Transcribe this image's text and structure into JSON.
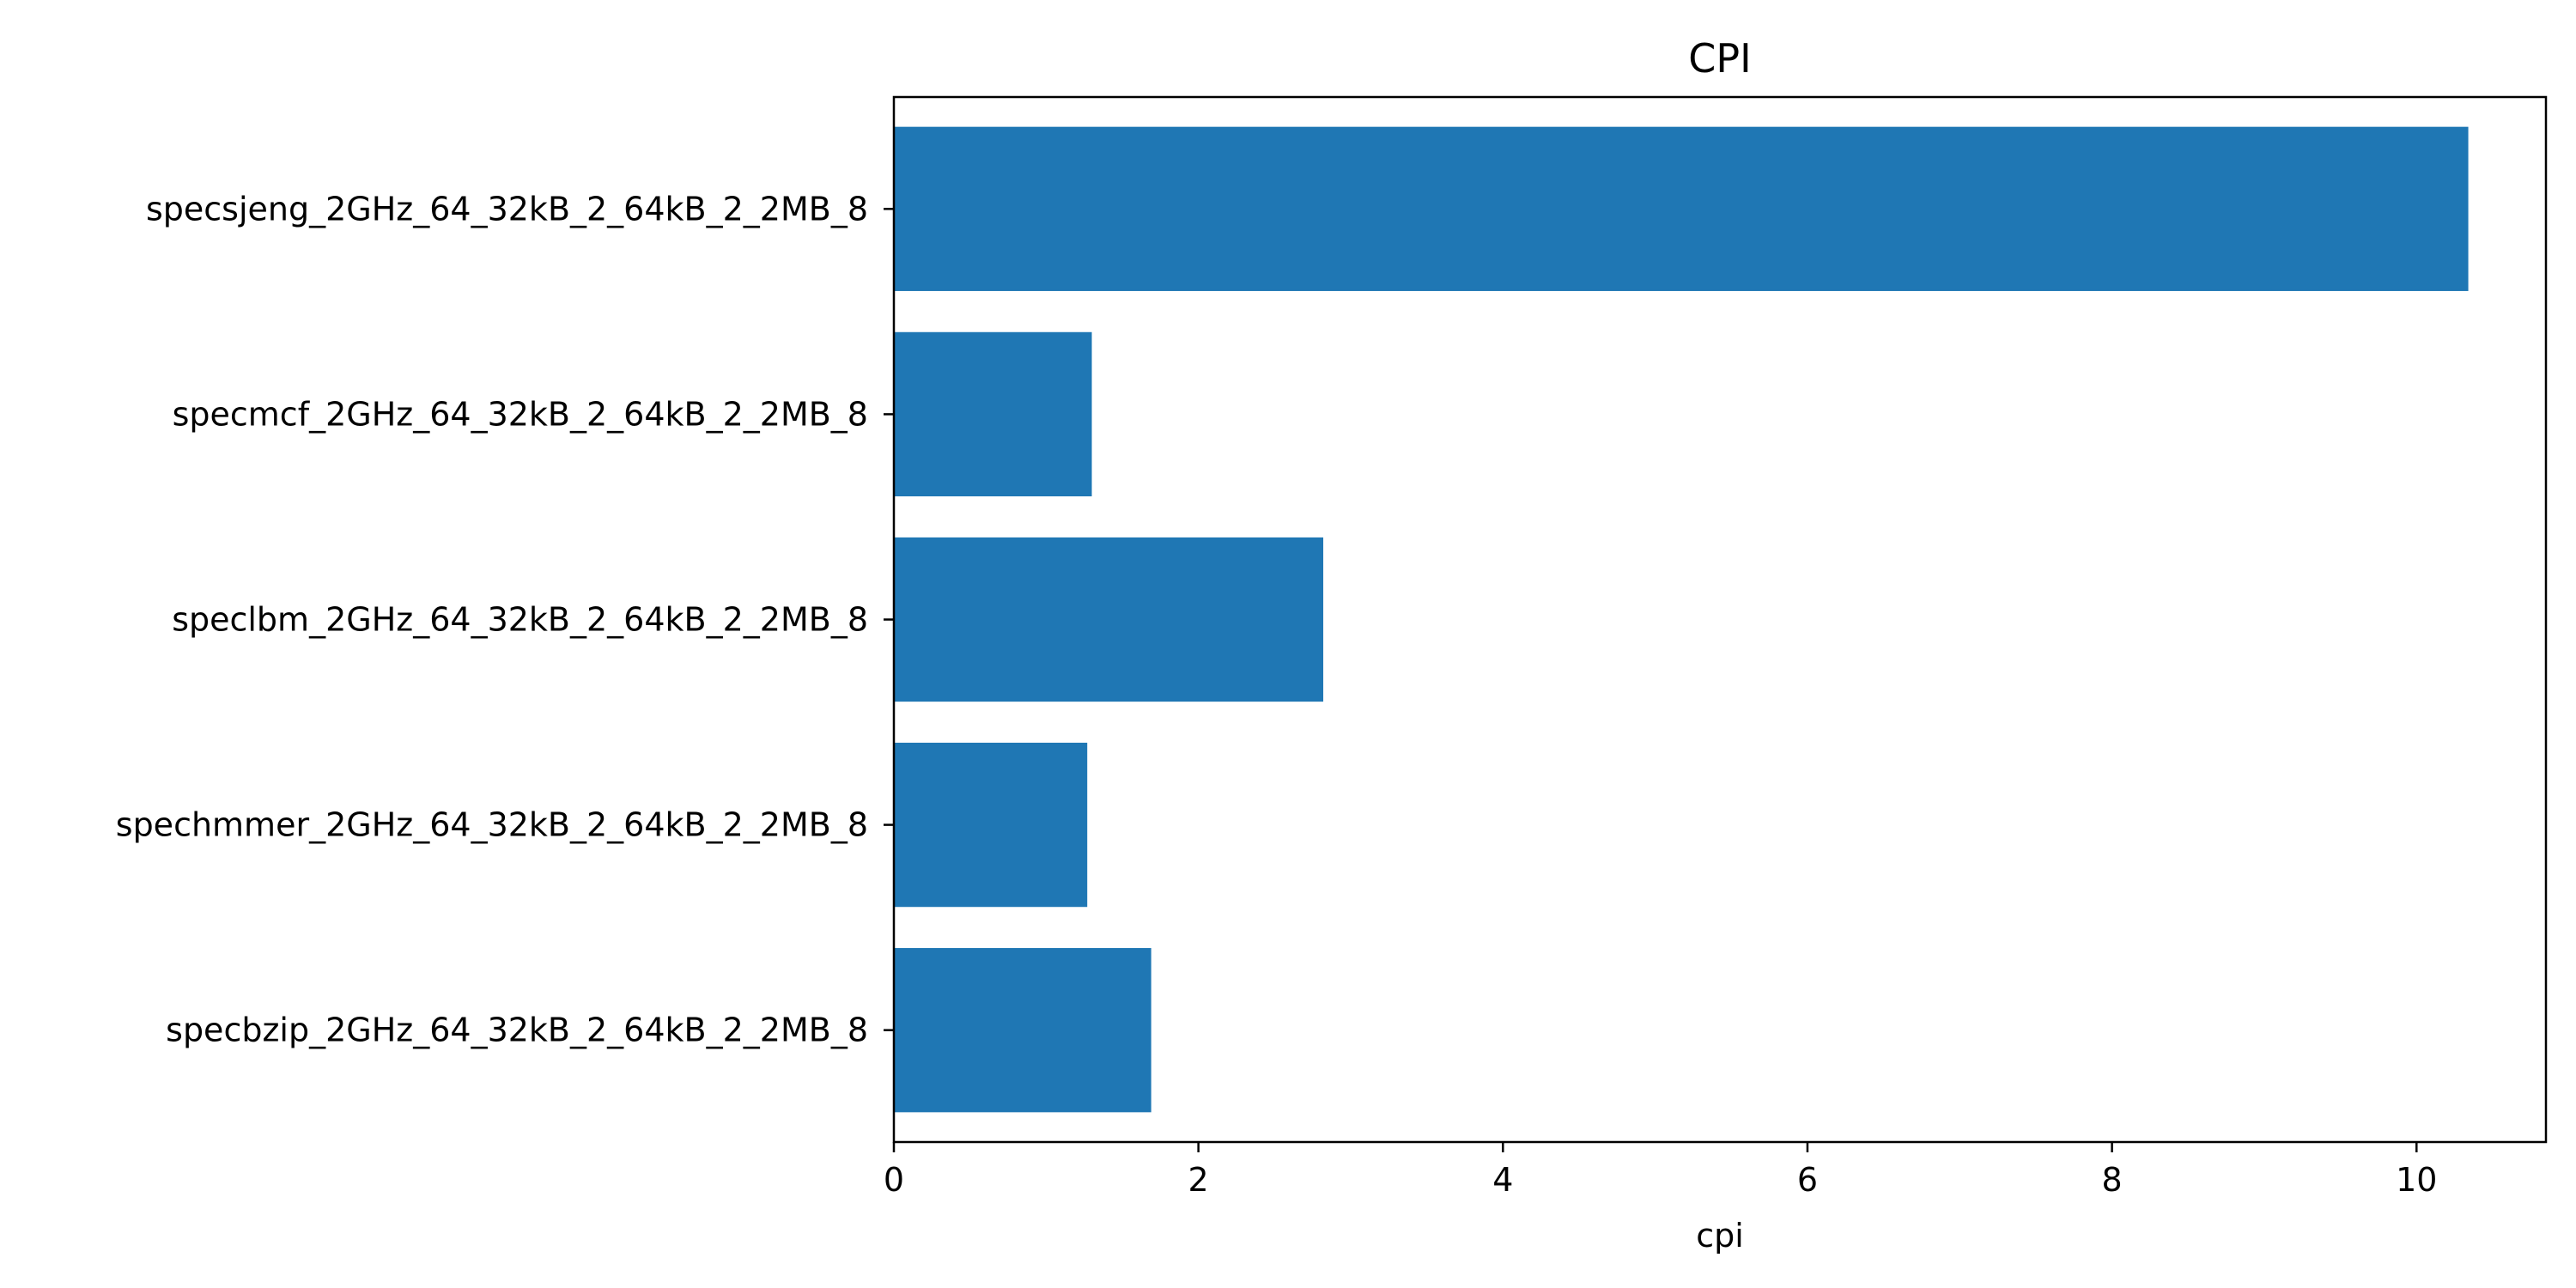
{
  "chart_data": {
    "type": "bar",
    "orientation": "horizontal",
    "title": "CPI",
    "xlabel": "cpi",
    "ylabel": "",
    "xlim": [
      0,
      10.85
    ],
    "xticks": [
      0,
      2,
      4,
      6,
      8,
      10
    ],
    "grid": false,
    "legend": "none",
    "bar_color": "#1f77b4",
    "categories": [
      "specsjeng_2GHz_64_32kB_2_64kB_2_2MB_8",
      "specmcf_2GHz_64_32kB_2_64kB_2_2MB_8",
      "speclbm_2GHz_64_32kB_2_64kB_2_2MB_8",
      "spechmmer_2GHz_64_32kB_2_64kB_2_2MB_8",
      "specbzip_2GHz_64_32kB_2_64kB_2_2MB_8"
    ],
    "values": [
      10.34,
      1.3,
      2.82,
      1.27,
      1.69
    ]
  }
}
